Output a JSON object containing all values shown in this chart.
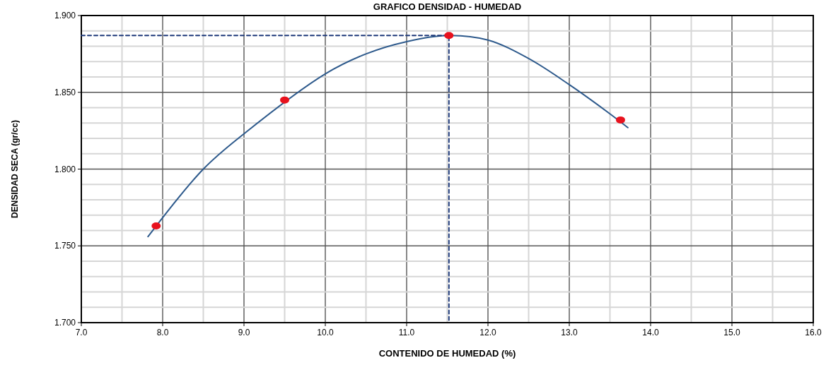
{
  "chart_data": {
    "type": "scatter",
    "title": "GRAFICO DENSIDAD - HUMEDAD",
    "xlabel": "CONTENIDO DE HUMEDAD (%)",
    "ylabel": "DENSIDAD SECA (gr/cc)",
    "xlim": [
      7,
      16
    ],
    "ylim": [
      1.7,
      1.9
    ],
    "xticks": [
      {
        "value": 7,
        "label": "7.0"
      },
      {
        "value": 7.5,
        "label": null
      },
      {
        "value": 8,
        "label": "8.0"
      },
      {
        "value": 8.5,
        "label": null
      },
      {
        "value": 9,
        "label": "9.0"
      },
      {
        "value": 9.5,
        "label": null
      },
      {
        "value": 10,
        "label": "10.0"
      },
      {
        "value": 10.5,
        "label": null
      },
      {
        "value": 11,
        "label": "11.0"
      },
      {
        "value": 11.5,
        "label": null
      },
      {
        "value": 12,
        "label": "12.0"
      },
      {
        "value": 12.5,
        "label": null
      },
      {
        "value": 13,
        "label": "13.0"
      },
      {
        "value": 13.5,
        "label": null
      },
      {
        "value": 14,
        "label": "14.0"
      },
      {
        "value": 14.5,
        "label": null
      },
      {
        "value": 15,
        "label": "15.0"
      },
      {
        "value": 15.5,
        "label": null
      },
      {
        "value": 16,
        "label": "16.0"
      }
    ],
    "yticks": [
      {
        "value": 1.7,
        "label": "1.700"
      },
      {
        "value": 1.71,
        "label": null
      },
      {
        "value": 1.72,
        "label": null
      },
      {
        "value": 1.73,
        "label": null
      },
      {
        "value": 1.74,
        "label": null
      },
      {
        "value": 1.75,
        "label": "1.750"
      },
      {
        "value": 1.76,
        "label": null
      },
      {
        "value": 1.77,
        "label": null
      },
      {
        "value": 1.78,
        "label": null
      },
      {
        "value": 1.79,
        "label": null
      },
      {
        "value": 1.8,
        "label": "1.800"
      },
      {
        "value": 1.81,
        "label": null
      },
      {
        "value": 1.82,
        "label": null
      },
      {
        "value": 1.83,
        "label": null
      },
      {
        "value": 1.84,
        "label": null
      },
      {
        "value": 1.85,
        "label": "1.850"
      },
      {
        "value": 1.86,
        "label": null
      },
      {
        "value": 1.87,
        "label": null
      },
      {
        "value": 1.88,
        "label": null
      },
      {
        "value": 1.89,
        "label": null
      },
      {
        "value": 1.9,
        "label": "1.900"
      }
    ],
    "grid": true,
    "series": [
      {
        "type": "line",
        "color": "#2e5a8c",
        "line_style": "solid",
        "marker": "none",
        "x": [
          7.82,
          8.5,
          9,
          10,
          10.5,
          11,
          11.5,
          12,
          12.5,
          13,
          13.5,
          13.72
        ],
        "values": [
          1.756,
          1.8,
          1.823,
          1.862,
          1.875,
          1.883,
          1.887,
          1.884,
          1.872,
          1.855,
          1.836,
          1.827
        ]
      },
      {
        "type": "line",
        "color": "#1f3a7a",
        "line_style": "dashed",
        "marker": "none",
        "x": [
          7,
          11.52,
          11.52
        ],
        "values": [
          1.887,
          1.887,
          1.7
        ]
      },
      {
        "color": "#e8121e",
        "marker": "circle",
        "x": [
          7.92,
          9.5,
          11.52,
          13.63
        ],
        "values": [
          1.763,
          1.845,
          1.887,
          1.832
        ]
      }
    ]
  }
}
